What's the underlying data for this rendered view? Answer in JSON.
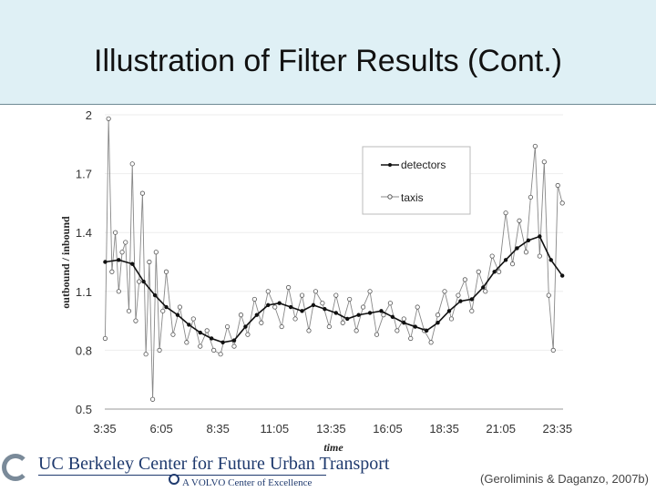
{
  "header": {
    "title": "Illustration of Filter Results (Cont.)"
  },
  "footer": {
    "logo_line1": "UC Berkeley Center for Future Urban Transport",
    "logo_line2": "A VOLVO Center of Excellence",
    "citation": "(Geroliminis & Daganzo, 2007b)"
  },
  "colors": {
    "header_bg": "#dff0f5",
    "detectors": "#111111",
    "taxis": "#888888"
  },
  "chart_data": {
    "type": "line",
    "xlabel": "time",
    "ylabel": "outbound / inbound",
    "ylim": [
      0.5,
      2
    ],
    "yticks": [
      0.5,
      0.8,
      1.1,
      1.4,
      1.7,
      2
    ],
    "xticks": [
      "3:35",
      "6:05",
      "8:35",
      "11:05",
      "13:35",
      "16:05",
      "18:35",
      "21:05",
      "23:35"
    ],
    "xlim_hours": [
      3.583,
      23.833
    ],
    "legend": "top-right",
    "series": [
      {
        "name": "detectors",
        "x_hours": [
          3.6,
          4.2,
          4.8,
          5.3,
          5.8,
          6.3,
          6.8,
          7.3,
          7.8,
          8.3,
          8.8,
          9.3,
          9.8,
          10.3,
          10.8,
          11.3,
          11.8,
          12.3,
          12.8,
          13.3,
          13.8,
          14.3,
          14.8,
          15.3,
          15.8,
          16.3,
          16.8,
          17.3,
          17.8,
          18.3,
          18.8,
          19.3,
          19.8,
          20.3,
          20.8,
          21.3,
          21.8,
          22.3,
          22.8,
          23.3,
          23.8
        ],
        "values": [
          1.25,
          1.26,
          1.24,
          1.15,
          1.08,
          1.02,
          0.98,
          0.93,
          0.89,
          0.86,
          0.84,
          0.85,
          0.92,
          0.98,
          1.03,
          1.04,
          1.02,
          1.0,
          1.03,
          1.01,
          0.99,
          0.96,
          0.98,
          0.99,
          1.0,
          0.97,
          0.94,
          0.92,
          0.9,
          0.94,
          1.0,
          1.05,
          1.06,
          1.12,
          1.2,
          1.26,
          1.32,
          1.36,
          1.38,
          1.26,
          1.18
        ]
      },
      {
        "name": "taxis",
        "x_hours": [
          3.6,
          3.75,
          3.9,
          4.05,
          4.2,
          4.35,
          4.5,
          4.65,
          4.8,
          4.95,
          5.1,
          5.25,
          5.4,
          5.55,
          5.7,
          5.85,
          6.0,
          6.15,
          6.3,
          6.6,
          6.9,
          7.2,
          7.5,
          7.8,
          8.1,
          8.4,
          8.7,
          9.0,
          9.3,
          9.6,
          9.9,
          10.2,
          10.5,
          10.8,
          11.1,
          11.4,
          11.7,
          12.0,
          12.3,
          12.6,
          12.9,
          13.2,
          13.5,
          13.8,
          14.1,
          14.4,
          14.7,
          15.0,
          15.3,
          15.6,
          15.9,
          16.2,
          16.5,
          16.8,
          17.1,
          17.4,
          17.7,
          18.0,
          18.3,
          18.6,
          18.9,
          19.2,
          19.5,
          19.8,
          20.1,
          20.4,
          20.7,
          21.0,
          21.3,
          21.6,
          21.9,
          22.2,
          22.4,
          22.6,
          22.8,
          23.0,
          23.2,
          23.4,
          23.6,
          23.8
        ],
        "values": [
          0.86,
          1.98,
          1.2,
          1.4,
          1.1,
          1.3,
          1.35,
          1.0,
          1.75,
          0.95,
          1.15,
          1.6,
          0.78,
          1.25,
          0.55,
          1.3,
          0.8,
          1.0,
          1.2,
          0.88,
          1.02,
          0.84,
          0.96,
          0.82,
          0.9,
          0.8,
          0.78,
          0.92,
          0.82,
          0.98,
          0.88,
          1.06,
          0.94,
          1.1,
          1.02,
          0.92,
          1.12,
          0.96,
          1.08,
          0.9,
          1.1,
          1.04,
          0.92,
          1.08,
          0.94,
          1.06,
          0.9,
          1.02,
          1.1,
          0.88,
          0.98,
          1.04,
          0.9,
          0.96,
          0.86,
          1.02,
          0.9,
          0.84,
          0.98,
          1.1,
          0.96,
          1.08,
          1.16,
          1.0,
          1.2,
          1.1,
          1.28,
          1.2,
          1.5,
          1.24,
          1.46,
          1.3,
          1.58,
          1.84,
          1.28,
          1.76,
          1.08,
          0.8,
          1.64,
          1.55
        ]
      }
    ]
  }
}
